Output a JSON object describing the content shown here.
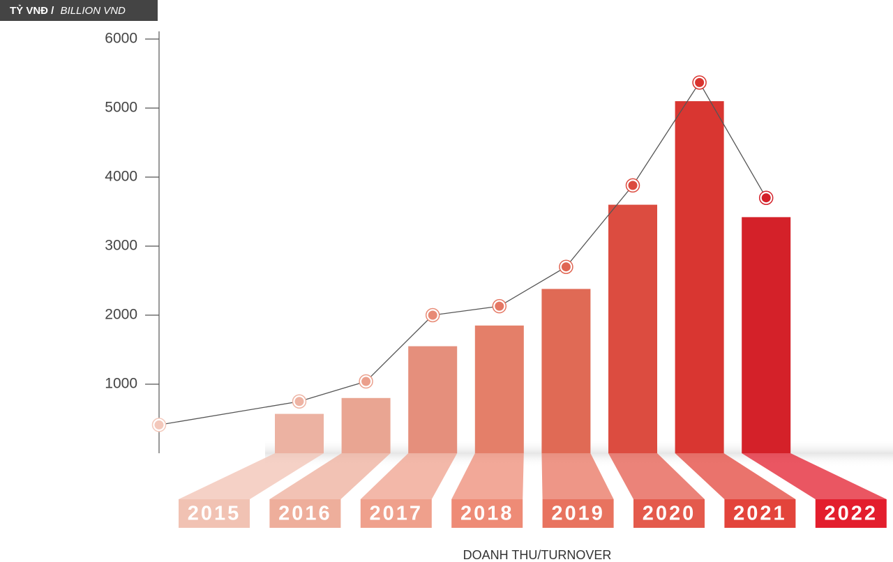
{
  "chart_data": {
    "type": "bar",
    "y_label_main": "TỶ VNĐ /",
    "y_label_italic": "BILLION VND",
    "x_label": "DOANH THU/TURNOVER",
    "categories": [
      null,
      "2015",
      "2016",
      "2017",
      "2018",
      "2019",
      "2020",
      "2021",
      "2022"
    ],
    "series": [
      {
        "type": "bar",
        "values": [
          null,
          570,
          800,
          1550,
          1850,
          2380,
          3600,
          5100,
          3420
        ],
        "colors": [
          null,
          "#ecb2a2",
          "#e9a592",
          "#e58f7c",
          "#e47f69",
          "#e06a55",
          "#dc4c40",
          "#d93631",
          "#d42129"
        ],
        "label_colors": [
          null,
          "#f1c2b3",
          "#eeae9b",
          "#efa08c",
          "#ee8b76",
          "#e8735f",
          "#e45a4c",
          "#e3443b",
          "#e31e2d"
        ]
      },
      {
        "type": "line",
        "color": "#555555",
        "values": [
          410,
          750,
          1040,
          2000,
          2130,
          2700,
          3880,
          5370,
          3700
        ],
        "colors": [
          "#f3c8bb",
          "#eeb3a3",
          "#eb9f8c",
          "#e88a75",
          "#e57763",
          "#e06552",
          "#dc4a3e",
          "#d9342f",
          "#d42029"
        ]
      }
    ],
    "ylim": [
      0,
      6000
    ],
    "yticks": [
      1000,
      2000,
      3000,
      4000,
      5000,
      6000
    ]
  }
}
